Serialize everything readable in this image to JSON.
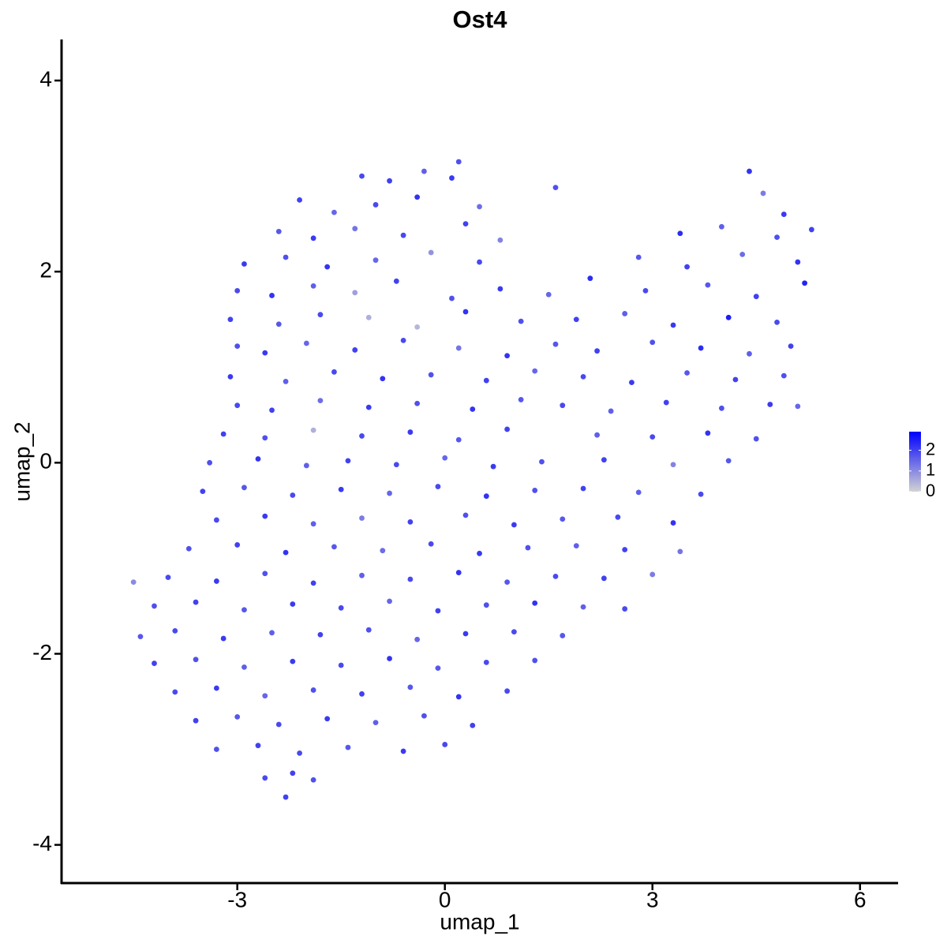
{
  "chart_data": {
    "type": "scatter",
    "title": "Ost4",
    "x_label": "umap_1",
    "y_label": "umap_2",
    "xlim": [
      -5.54,
      6.55
    ],
    "ylim": [
      -4.4,
      4.43
    ],
    "xticks": [
      -3,
      0,
      3,
      6
    ],
    "yticks": [
      -4,
      -2,
      0,
      2,
      4
    ],
    "color_low": "#d3d3d3",
    "color_high": "#0000ff",
    "colorlim": [
      0,
      2.9
    ],
    "colorticks": [
      0,
      1,
      2
    ],
    "x": [
      -1.2,
      -0.8,
      -0.3,
      0.1,
      0.2,
      4.4,
      -2.1,
      -1.6,
      -1.0,
      -0.4,
      0.5,
      1.6,
      4.6,
      4.9,
      -2.4,
      -1.9,
      -1.3,
      -0.6,
      0.3,
      0.8,
      3.4,
      4.0,
      4.8,
      5.3,
      -2.9,
      -2.3,
      -1.7,
      -1.0,
      -0.2,
      0.5,
      2.8,
      3.5,
      4.3,
      5.1,
      -3.0,
      -2.5,
      -1.9,
      -1.3,
      -0.7,
      0.1,
      0.8,
      1.5,
      2.1,
      2.9,
      3.8,
      4.5,
      5.2,
      -3.1,
      -2.4,
      -1.8,
      -1.1,
      -0.4,
      0.3,
      1.1,
      1.9,
      2.6,
      3.3,
      4.1,
      4.8,
      -3.0,
      -2.6,
      -2.0,
      -1.3,
      -0.6,
      0.2,
      0.9,
      1.6,
      2.2,
      3.0,
      3.7,
      4.4,
      5.0,
      -3.1,
      -2.3,
      -1.6,
      -0.9,
      -0.2,
      0.6,
      1.3,
      2.0,
      2.7,
      3.5,
      4.2,
      4.9,
      -3.0,
      -2.5,
      -1.8,
      -1.1,
      -0.4,
      0.4,
      1.1,
      1.7,
      2.4,
      3.2,
      4.0,
      4.7,
      5.1,
      -3.2,
      -2.6,
      -1.9,
      -1.2,
      -0.5,
      0.2,
      0.9,
      2.2,
      3.0,
      3.8,
      4.5,
      -3.4,
      -2.7,
      -2.0,
      -1.4,
      -0.7,
      0.0,
      0.7,
      1.4,
      2.3,
      3.3,
      4.1,
      -3.5,
      -2.9,
      -2.2,
      -1.5,
      -0.8,
      -0.1,
      0.6,
      1.3,
      2.0,
      2.8,
      3.7,
      -3.3,
      -2.6,
      -1.9,
      -1.2,
      -0.5,
      0.3,
      1.0,
      1.7,
      2.5,
      3.3,
      -3.7,
      -3.0,
      -2.3,
      -1.6,
      -0.9,
      -0.2,
      0.5,
      1.2,
      1.9,
      2.6,
      3.4,
      -4.5,
      -4.0,
      -3.3,
      -2.6,
      -1.9,
      -1.2,
      -0.5,
      0.2,
      0.9,
      1.6,
      2.3,
      3.0,
      -4.2,
      -3.6,
      -2.9,
      -2.2,
      -1.5,
      -0.8,
      -0.1,
      0.6,
      1.3,
      2.0,
      2.6,
      -4.4,
      -3.9,
      -3.2,
      -2.5,
      -1.8,
      -1.1,
      -0.4,
      0.3,
      1.0,
      1.7,
      -4.2,
      -3.6,
      -2.9,
      -2.2,
      -1.5,
      -0.8,
      -0.1,
      0.6,
      1.3,
      -3.9,
      -3.3,
      -2.6,
      -1.9,
      -1.2,
      -0.5,
      0.2,
      0.9,
      -3.6,
      -3.0,
      -2.4,
      -1.7,
      -1.0,
      -0.3,
      0.4,
      -3.3,
      -2.7,
      -2.1,
      -1.4,
      -0.6,
      0.0,
      -2.6,
      -2.2,
      -1.9,
      -2.3
    ],
    "y": [
      3.0,
      2.95,
      3.05,
      2.98,
      3.15,
      3.05,
      2.75,
      2.62,
      2.7,
      2.78,
      2.68,
      2.88,
      2.82,
      2.6,
      2.42,
      2.35,
      2.45,
      2.38,
      2.5,
      2.33,
      2.4,
      2.47,
      2.36,
      2.44,
      2.08,
      2.15,
      2.05,
      2.12,
      2.2,
      2.1,
      2.15,
      2.05,
      2.18,
      2.1,
      1.8,
      1.75,
      1.85,
      1.78,
      1.9,
      1.72,
      1.82,
      1.76,
      1.93,
      1.8,
      1.86,
      1.74,
      1.88,
      1.5,
      1.45,
      1.55,
      1.52,
      1.42,
      1.58,
      1.48,
      1.5,
      1.56,
      1.44,
      1.52,
      1.47,
      1.22,
      1.15,
      1.25,
      1.18,
      1.28,
      1.2,
      1.12,
      1.24,
      1.17,
      1.26,
      1.2,
      1.14,
      1.22,
      0.9,
      0.85,
      0.95,
      0.88,
      0.92,
      0.86,
      0.96,
      0.9,
      0.84,
      0.94,
      0.87,
      0.91,
      0.6,
      0.55,
      0.65,
      0.58,
      0.62,
      0.56,
      0.66,
      0.6,
      0.54,
      0.63,
      0.57,
      0.61,
      0.59,
      0.3,
      0.26,
      0.34,
      0.28,
      0.32,
      0.24,
      0.35,
      0.29,
      0.27,
      0.31,
      0.25,
      0.0,
      0.04,
      -0.03,
      0.02,
      -0.02,
      0.05,
      -0.04,
      0.01,
      0.03,
      -0.02,
      0.02,
      -0.3,
      -0.26,
      -0.34,
      -0.28,
      -0.32,
      -0.25,
      -0.35,
      -0.29,
      -0.27,
      -0.31,
      -0.33,
      -0.6,
      -0.56,
      -0.64,
      -0.58,
      -0.62,
      -0.55,
      -0.65,
      -0.59,
      -0.57,
      -0.63,
      -0.9,
      -0.86,
      -0.94,
      -0.88,
      -0.92,
      -0.85,
      -0.95,
      -0.89,
      -0.87,
      -0.91,
      -0.93,
      -1.25,
      -1.2,
      -1.24,
      -1.16,
      -1.26,
      -1.18,
      -1.22,
      -1.15,
      -1.25,
      -1.19,
      -1.21,
      -1.17,
      -1.5,
      -1.46,
      -1.54,
      -1.48,
      -1.52,
      -1.45,
      -1.55,
      -1.49,
      -1.47,
      -1.51,
      -1.53,
      -1.82,
      -1.76,
      -1.84,
      -1.78,
      -1.8,
      -1.75,
      -1.85,
      -1.79,
      -1.77,
      -1.81,
      -2.1,
      -2.06,
      -2.14,
      -2.08,
      -2.12,
      -2.05,
      -2.15,
      -2.09,
      -2.07,
      -2.4,
      -2.36,
      -2.44,
      -2.38,
      -2.42,
      -2.35,
      -2.45,
      -2.39,
      -2.7,
      -2.66,
      -2.74,
      -2.68,
      -2.72,
      -2.65,
      -2.75,
      -3.0,
      -2.96,
      -3.04,
      -2.98,
      -3.02,
      -2.95,
      -3.3,
      -3.25,
      -3.32,
      -3.5
    ],
    "values": [
      1.9,
      2.0,
      1.6,
      2.1,
      1.8,
      2.2,
      2.0,
      1.5,
      1.9,
      2.2,
      1.4,
      1.8,
      1.2,
      2.1,
      1.7,
      2.1,
      1.3,
      1.9,
      2.0,
      1.1,
      2.3,
      1.6,
      1.8,
      2.0,
      2.1,
      1.8,
      2.2,
      1.5,
      0.9,
      1.9,
      1.7,
      2.0,
      1.4,
      2.2,
      1.9,
      2.2,
      1.6,
      0.7,
      2.0,
      1.8,
      2.1,
      1.5,
      2.3,
      1.9,
      1.7,
      2.0,
      2.4,
      2.0,
      1.7,
      1.9,
      0.5,
      0.4,
      2.2,
      1.8,
      2.0,
      1.6,
      2.1,
      2.5,
      1.9,
      1.8,
      2.1,
      1.5,
      2.0,
      1.9,
      1.3,
      2.2,
      1.7,
      2.0,
      1.8,
      2.3,
      1.6,
      2.0,
      2.1,
      1.6,
      1.9,
      2.2,
      1.8,
      2.0,
      1.5,
      1.9,
      2.1,
      1.7,
      2.0,
      1.8,
      1.9,
      2.0,
      1.4,
      2.1,
      1.8,
      2.2,
      1.7,
      1.9,
      1.6,
      2.0,
      1.8,
      2.1,
      1.5,
      2.0,
      1.8,
      0.5,
      1.9,
      2.1,
      1.7,
      2.0,
      1.6,
      1.9,
      2.2,
      1.8,
      1.8,
      2.2,
      1.6,
      2.0,
      1.9,
      1.5,
      2.1,
      1.8,
      2.0,
      1.1,
      1.7,
      2.0,
      1.7,
      1.9,
      2.1,
      1.5,
      1.9,
      2.2,
      1.8,
      2.0,
      1.6,
      1.9,
      1.9,
      2.1,
      1.6,
      1.2,
      2.0,
      1.8,
      2.1,
      1.7,
      1.9,
      2.2,
      1.8,
      2.0,
      2.2,
      1.7,
      1.4,
      1.9,
      2.1,
      1.8,
      1.6,
      2.0,
      1.3,
      1.0,
      1.9,
      2.1,
      1.8,
      2.0,
      1.6,
      1.9,
      2.2,
      1.7,
      1.9,
      2.0,
      1.2,
      1.8,
      2.0,
      1.7,
      2.1,
      1.9,
      1.5,
      2.0,
      1.8,
      2.2,
      1.6,
      1.9,
      1.7,
      1.9,
      2.1,
      1.6,
      2.0,
      1.8,
      1.5,
      2.1,
      1.9,
      1.7,
      2.0,
      1.8,
      1.6,
      2.1,
      1.9,
      2.2,
      1.7,
      1.9,
      1.8,
      1.9,
      2.1,
      1.5,
      1.8,
      2.0,
      1.7,
      2.2,
      1.9,
      2.0,
      1.7,
      1.9,
      2.1,
      1.6,
      1.8,
      2.0,
      1.8,
      2.0,
      1.9,
      1.7,
      2.1,
      1.9,
      1.9,
      2.0,
      1.8,
      2.0
    ]
  }
}
